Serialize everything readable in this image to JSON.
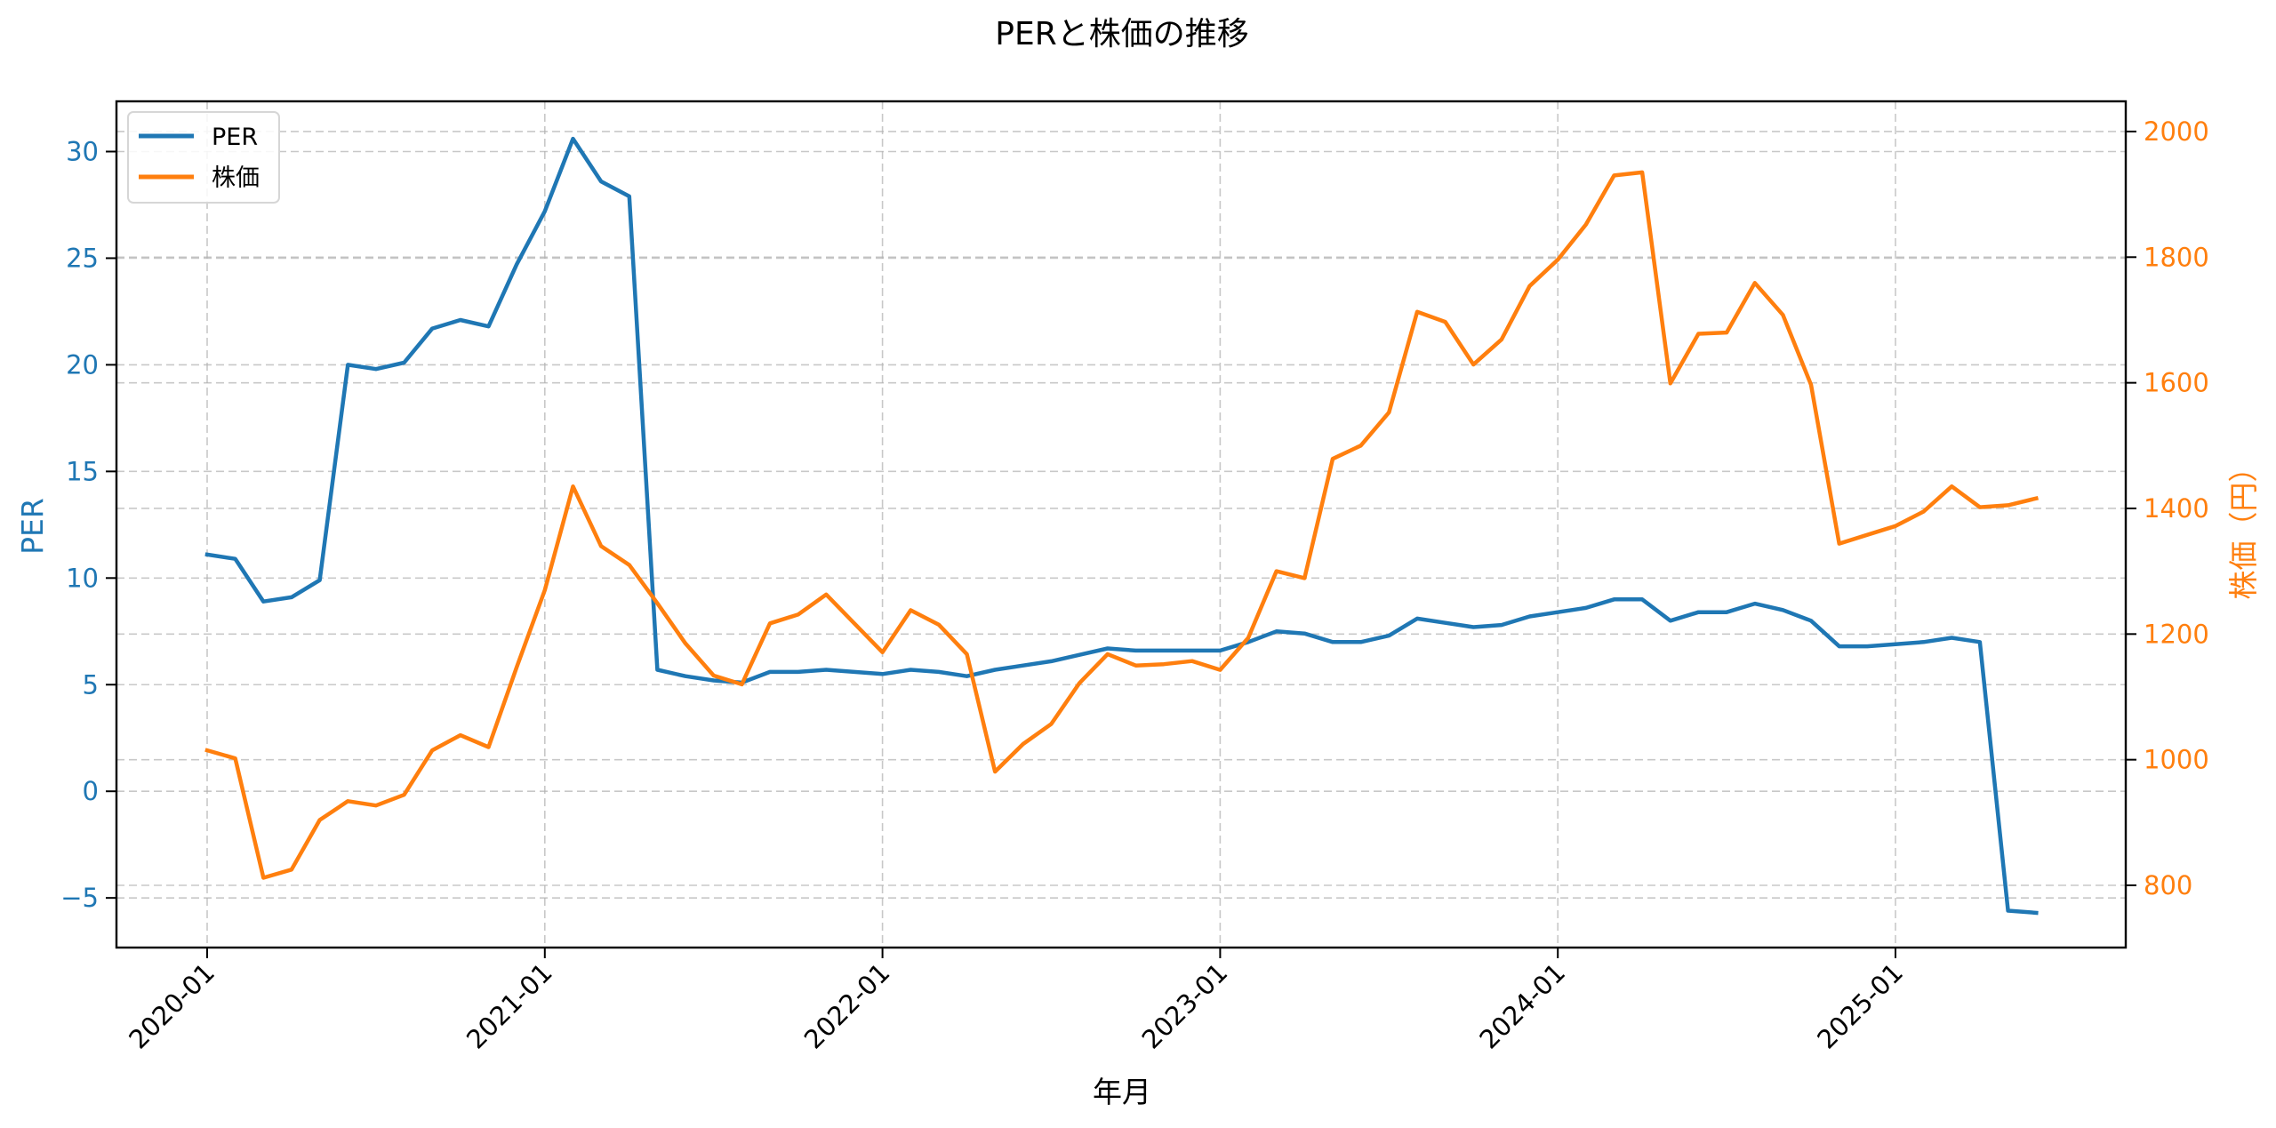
{
  "title": "PERと株価の推移",
  "xlabel": "年月",
  "ylabel_left": "PER",
  "ylabel_right": "株価（円）",
  "legend": [
    {
      "label": "PER",
      "color": "#1f77b4"
    },
    {
      "label": "株価",
      "color": "#ff7f0e"
    }
  ],
  "colors": {
    "per": "#1f77b4",
    "price": "#ff7f0e",
    "grid": "#b0b0b0",
    "axis": "#000000"
  },
  "chart_data": {
    "type": "line",
    "title": "PERと株価の推移",
    "xlabel": "年月",
    "ylabel": "PER",
    "ylabel_secondary": "株価（円）",
    "x_ticks": [
      "2020-01",
      "2021-01",
      "2022-01",
      "2023-01",
      "2024-01",
      "2025-01"
    ],
    "y_ticks_left": [
      -5,
      0,
      5,
      10,
      15,
      20,
      25,
      30
    ],
    "y_ticks_right": [
      800,
      1000,
      1200,
      1400,
      1600,
      1800,
      2000
    ],
    "ylim": [
      -7.5,
      32.5
    ],
    "ylim_secondary": [
      700,
      2040
    ],
    "grid": true,
    "legend_position": "upper left",
    "x": [
      "2020-01",
      "2020-02",
      "2020-03",
      "2020-04",
      "2020-05",
      "2020-06",
      "2020-07",
      "2020-08",
      "2020-09",
      "2020-10",
      "2020-11",
      "2020-12",
      "2021-01",
      "2021-02",
      "2021-03",
      "2021-04",
      "2021-05",
      "2021-06",
      "2021-07",
      "2021-08",
      "2021-09",
      "2021-10",
      "2021-11",
      "2021-12",
      "2022-01",
      "2022-02",
      "2022-03",
      "2022-04",
      "2022-05",
      "2022-06",
      "2022-07",
      "2022-08",
      "2022-09",
      "2022-10",
      "2022-11",
      "2022-12",
      "2023-01",
      "2023-02",
      "2023-03",
      "2023-04",
      "2023-05",
      "2023-06",
      "2023-07",
      "2023-08",
      "2023-09",
      "2023-10",
      "2023-11",
      "2023-12",
      "2024-01",
      "2024-02",
      "2024-03",
      "2024-04",
      "2024-05",
      "2024-06",
      "2024-07",
      "2024-08",
      "2024-09",
      "2024-10",
      "2024-11",
      "2024-12",
      "2025-01",
      "2025-02",
      "2025-03",
      "2025-04",
      "2025-05",
      "2025-06"
    ],
    "series": [
      {
        "name": "PER",
        "axis": "left",
        "color": "#1f77b4",
        "values": [
          11.1,
          10.9,
          8.9,
          9.1,
          9.9,
          20.0,
          19.8,
          20.1,
          21.7,
          22.1,
          21.8,
          24.7,
          27.2,
          30.6,
          28.6,
          27.9,
          5.7,
          5.4,
          5.2,
          5.1,
          5.6,
          5.6,
          5.7,
          5.6,
          5.5,
          5.7,
          5.6,
          5.4,
          5.7,
          5.9,
          6.1,
          6.4,
          6.7,
          6.6,
          6.6,
          6.6,
          6.6,
          7.0,
          7.5,
          7.4,
          7.0,
          7.0,
          7.3,
          8.1,
          7.9,
          7.7,
          7.8,
          8.2,
          8.4,
          8.6,
          9.0,
          9.0,
          8.0,
          8.4,
          8.4,
          8.8,
          8.5,
          8.0,
          6.8,
          6.8,
          6.9,
          7.0,
          7.2,
          7.0,
          -5.6,
          -5.7
        ]
      },
      {
        "name": "株価",
        "axis": "right",
        "color": "#ff7f0e",
        "values": [
          1015,
          1002,
          812,
          825,
          904,
          934,
          927,
          944,
          1015,
          1039,
          1020,
          1147,
          1270,
          1435,
          1340,
          1310,
          1249,
          1185,
          1134,
          1120,
          1217,
          1231,
          1263,
          1217,
          1171,
          1238,
          1215,
          1168,
          981,
          1025,
          1057,
          1122,
          1168,
          1150,
          1152,
          1157,
          1143,
          1194,
          1300,
          1289,
          1479,
          1500,
          1553,
          1713,
          1697,
          1629,
          1669,
          1754,
          1796,
          1852,
          1930,
          1935,
          1599,
          1678,
          1680,
          1759,
          1708,
          1597,
          1344,
          1358,
          1372,
          1395,
          1435,
          1402,
          1405,
          1416
        ]
      }
    ]
  }
}
